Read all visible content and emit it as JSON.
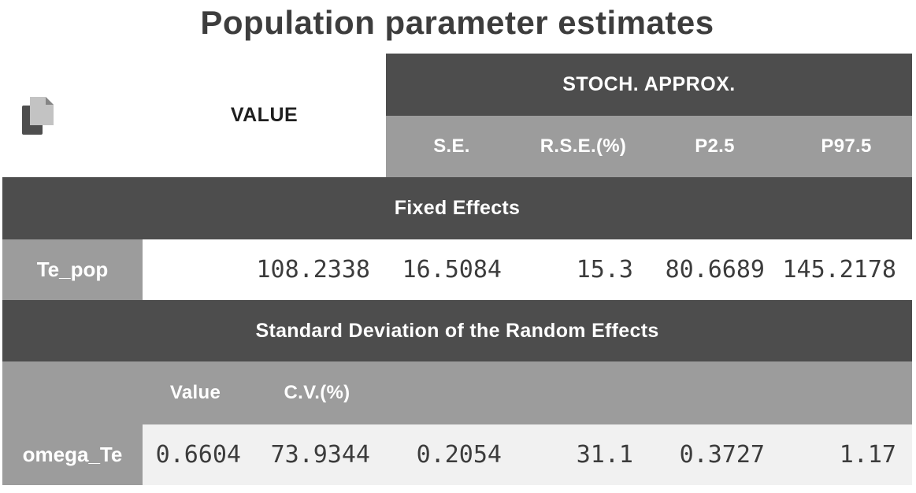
{
  "title": "Population parameter estimates",
  "colors": {
    "dark_band": "#4d4d4d",
    "gray_band": "#9c9c9c",
    "light_row": "#f1f1f1",
    "number_text": "#3c3c3c",
    "title_text": "#3d3d3d",
    "band_text": "#ffffff"
  },
  "table": {
    "corner_icon": "copy-icon",
    "value_header": "VALUE",
    "group_header": "STOCH. APPROX.",
    "stoch_columns": [
      "S.E.",
      "R.S.E.(%)",
      "P2.5",
      "P97.5"
    ],
    "sections": [
      {
        "title": "Fixed Effects",
        "rows": [
          {
            "param": "Te_pop",
            "value": "108.2338",
            "se": "16.5084",
            "rse": "15.3",
            "p2_5": "80.6689",
            "p97_5": "145.2178"
          }
        ]
      },
      {
        "title": "Standard Deviation of the Random Effects",
        "sub_columns": [
          "Value",
          "C.V.(%)"
        ],
        "rows": [
          {
            "param": "omega_Te",
            "value": "0.6604",
            "cv": "73.9344",
            "se": "0.2054",
            "rse": "31.1",
            "p2_5": "0.3727",
            "p97_5": "1.17"
          }
        ]
      }
    ]
  }
}
